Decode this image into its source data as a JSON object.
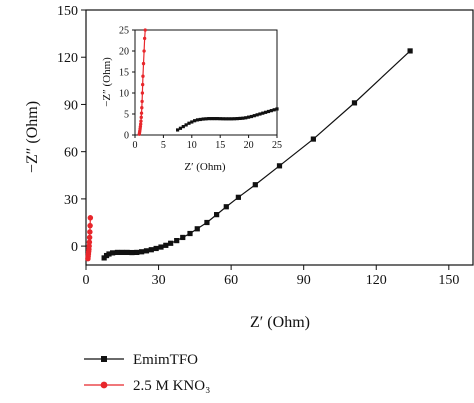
{
  "chart_data": [
    {
      "type": "scatter",
      "xlabel": "Z′ (Ohm)",
      "ylabel": "−Z″ (Ohm)",
      "xlim": [
        0,
        160
      ],
      "ylim": [
        -12,
        150
      ],
      "xticks": [
        0,
        30,
        60,
        90,
        120,
        150
      ],
      "yticks": [
        0,
        30,
        60,
        90,
        120,
        150
      ],
      "legend_position": "bottom-left",
      "series": [
        {
          "name": "EmimTFO",
          "color": "#111111",
          "marker": "square",
          "x": [
            7.5,
            8.5,
            9.5,
            11,
            13,
            15,
            17,
            19,
            21,
            23,
            25,
            27,
            29,
            31,
            33,
            35,
            37.5,
            40,
            43,
            46,
            50,
            54,
            58,
            63,
            70,
            80,
            94,
            111,
            134
          ],
          "y": [
            -7.5,
            -6,
            -5,
            -4.3,
            -4,
            -4,
            -4,
            -4.1,
            -4,
            -3.6,
            -3,
            -2.3,
            -1.5,
            -0.6,
            0.5,
            1.8,
            3.5,
            5.5,
            8,
            11,
            15,
            20,
            25,
            31,
            39,
            51,
            68,
            91,
            124
          ]
        },
        {
          "name": "2.5 M KNO₃",
          "color": "#e8262b",
          "marker": "circle",
          "x": [
            0.8,
            0.9,
            1.0,
            1.1,
            1.2,
            1.3,
            1.4,
            1.5,
            1.6,
            1.7,
            1.8
          ],
          "y": [
            -8,
            -6.5,
            -5,
            -3.5,
            -2,
            0,
            2.5,
            5.5,
            9,
            13,
            18
          ]
        }
      ]
    },
    {
      "type": "scatter",
      "xlabel": "Z′ (Ohm)",
      "ylabel": "−Z″ (Ohm)",
      "xlim": [
        0,
        25
      ],
      "ylim": [
        0,
        25
      ],
      "xticks": [
        0,
        5,
        10,
        15,
        20,
        25
      ],
      "yticks": [
        0,
        5,
        10,
        15,
        20,
        25
      ],
      "series": [
        {
          "name": "EmimTFO",
          "color": "#111111",
          "marker": "square",
          "x": [
            7.5,
            8,
            8.5,
            9,
            9.5,
            10,
            10.5,
            11,
            11.5,
            12,
            12.5,
            13,
            13.5,
            14,
            14.5,
            15,
            15.5,
            16,
            16.5,
            17,
            17.5,
            18,
            18.5,
            19,
            19.5,
            20,
            20.5,
            21,
            21.5,
            22,
            22.5,
            23,
            23.5,
            24,
            24.5,
            25
          ],
          "y": [
            1.2,
            1.6,
            2.0,
            2.4,
            2.8,
            3.1,
            3.4,
            3.6,
            3.7,
            3.8,
            3.85,
            3.9,
            3.9,
            3.9,
            3.9,
            3.88,
            3.86,
            3.85,
            3.85,
            3.85,
            3.87,
            3.9,
            3.95,
            4.0,
            4.1,
            4.25,
            4.4,
            4.6,
            4.8,
            5.0,
            5.2,
            5.4,
            5.6,
            5.8,
            6.0,
            6.2
          ]
        },
        {
          "name": "2.5 M KNO₃",
          "color": "#e8262b",
          "marker": "circle",
          "x": [
            0.75,
            0.8,
            0.85,
            0.9,
            0.95,
            1.0,
            1.05,
            1.1,
            1.15,
            1.2,
            1.25,
            1.3,
            1.35,
            1.4,
            1.5,
            1.6,
            1.7,
            1.8
          ],
          "y": [
            0.2,
            0.6,
            1.0,
            1.5,
            2.0,
            2.6,
            3.3,
            4.2,
            5.2,
            6.5,
            8.0,
            10,
            12,
            14,
            17,
            20,
            23,
            25
          ]
        }
      ]
    }
  ]
}
